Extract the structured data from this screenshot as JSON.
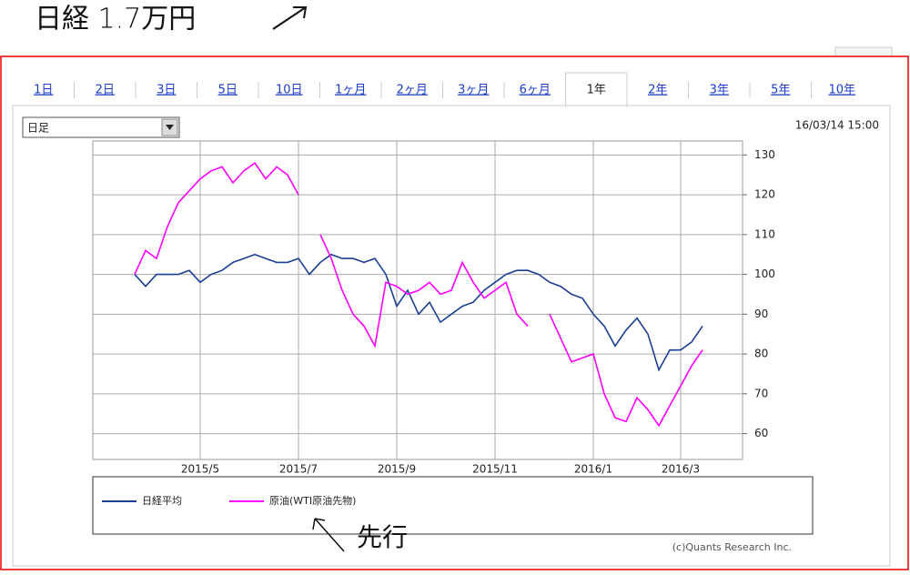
{
  "annotations": {
    "top_note": "日経 1.7万円",
    "lead_note": "先行"
  },
  "ui": {
    "tabs": [
      "1日",
      "2日",
      "3日",
      "5日",
      "10日",
      "1ヶ月",
      "2ヶ月",
      "3ヶ月",
      "6ヶ月",
      "1年",
      "2年",
      "3年",
      "5年",
      "10年"
    ],
    "selected_tab": 9,
    "dropdown": "日足",
    "timestamp": "16/03/14 15:00",
    "credit": "(c)Quants Research Inc."
  },
  "chart_data": {
    "type": "line",
    "categories": [
      null,
      null,
      null,
      null,
      null,
      null,
      "2015/5",
      null,
      null,
      null,
      null,
      null,
      null,
      null,
      null,
      "2015/7",
      null,
      null,
      null,
      null,
      null,
      null,
      null,
      null,
      "2015/9",
      null,
      null,
      null,
      null,
      null,
      null,
      null,
      null,
      "2015/11",
      null,
      null,
      null,
      null,
      null,
      null,
      null,
      null,
      "2016/1",
      null,
      null,
      null,
      null,
      null,
      null,
      null,
      "2016/3",
      null,
      null
    ],
    "series": [
      {
        "name": "日経平均",
        "color": "#1a3f94",
        "values": [
          100,
          97,
          100,
          100,
          100,
          101,
          98,
          100,
          101,
          103,
          104,
          105,
          104,
          103,
          103,
          104,
          100,
          103,
          105,
          104,
          104,
          103,
          104,
          100,
          92,
          96,
          90,
          93,
          88,
          90,
          92,
          93,
          96,
          98,
          100,
          101,
          101,
          100,
          98,
          97,
          95,
          94,
          90,
          87,
          82,
          86,
          89,
          85,
          76,
          81,
          81,
          83,
          87
        ]
      },
      {
        "name": "原油(WTI原油先物)",
        "color": "#ff00ff",
        "values": [
          100,
          106,
          104,
          112,
          118,
          121,
          124,
          126,
          127,
          123,
          126,
          128,
          124,
          127,
          125,
          120,
          null,
          110,
          104,
          96,
          90,
          87,
          82,
          98,
          97,
          95,
          96,
          98,
          95,
          96,
          103,
          98,
          94,
          96,
          98,
          90,
          87,
          null,
          90,
          84,
          78,
          79,
          80,
          70,
          64,
          63,
          69,
          66,
          62,
          67,
          72,
          77,
          81
        ]
      }
    ],
    "ylim": [
      53.5,
      133.5
    ],
    "yticks": [
      60,
      70,
      80,
      90,
      100,
      110,
      120,
      130
    ],
    "grid": true,
    "legend": "bottom"
  }
}
